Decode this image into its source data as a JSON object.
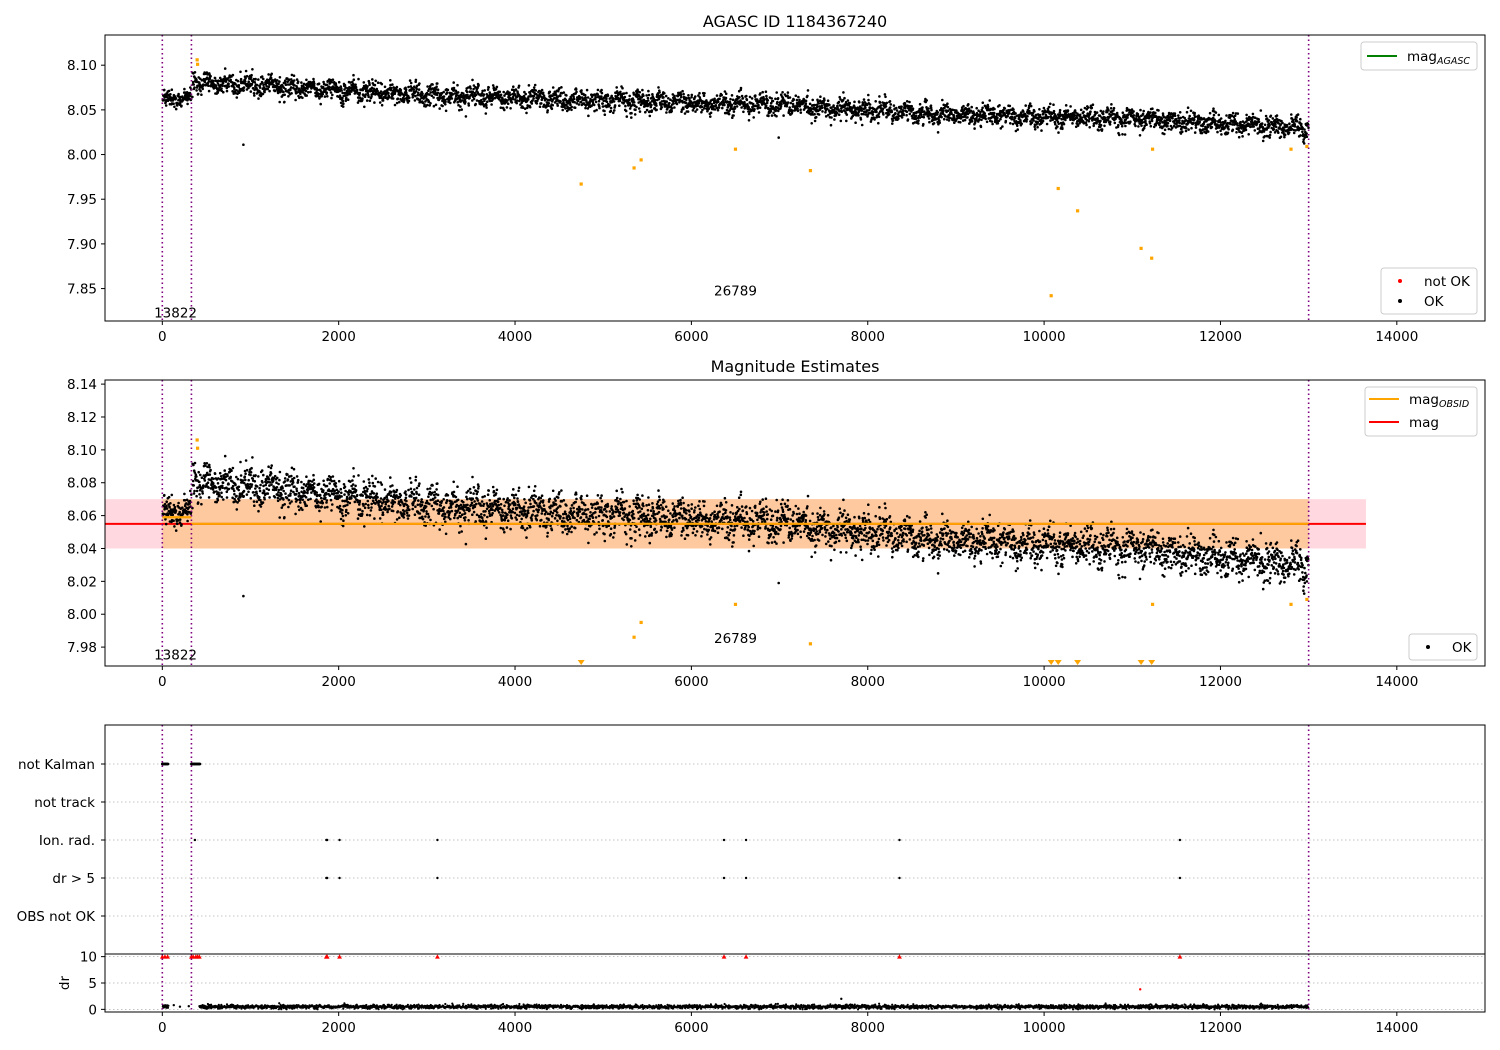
{
  "figure": {
    "title": "AGASC ID 1184367240",
    "background": "#ffffff"
  },
  "colors": {
    "ok": "#000000",
    "not_ok": "#ff0000",
    "mag_obsid": "#ffa500",
    "mag": "#ff0000",
    "mag_agasc": "#008000",
    "obsid_line": "#800080",
    "band_orange": "#ffdab9",
    "band_pink": "#ffd9df",
    "grid": "#b0b0b0"
  },
  "chart_data": [
    {
      "id": "agasc_panel",
      "type": "scatter",
      "title": "AGASC ID 1184367240",
      "xlim": [
        -650,
        15000
      ],
      "ylim": [
        7.8137,
        8.1338
      ],
      "xticks": [
        0,
        2000,
        4000,
        6000,
        8000,
        10000,
        12000,
        14000
      ],
      "yticks": [
        7.85,
        7.9,
        7.95,
        8.0,
        8.05,
        8.1
      ],
      "obsid_lines": [
        0,
        330,
        13000
      ],
      "obsid_labels": [
        {
          "text": "13822",
          "x": 150,
          "y": 7.823
        },
        {
          "text": "26789",
          "x": 6500,
          "y": 7.848
        }
      ],
      "ok_series": {
        "name": "OK",
        "trend": [
          [
            0,
            8.062
          ],
          [
            330,
            8.062
          ],
          [
            331,
            8.08
          ],
          [
            600,
            8.08
          ],
          [
            2000,
            8.072
          ],
          [
            3000,
            8.067
          ],
          [
            4000,
            8.063
          ],
          [
            5000,
            8.06
          ],
          [
            6000,
            8.058
          ],
          [
            7000,
            8.056
          ],
          [
            8000,
            8.05
          ],
          [
            9000,
            8.045
          ],
          [
            10000,
            8.042
          ],
          [
            11000,
            8.04
          ],
          [
            12000,
            8.035
          ],
          [
            13000,
            8.03
          ]
        ],
        "outliers": [
          [
            920,
            8.011
          ],
          [
            6990,
            8.019
          ]
        ]
      },
      "orange_points": [
        [
          395,
          8.106
        ],
        [
          400,
          8.101
        ],
        [
          4750,
          7.967
        ],
        [
          5350,
          7.985
        ],
        [
          5430,
          7.994
        ],
        [
          6500,
          8.006
        ],
        [
          7350,
          7.982
        ],
        [
          10080,
          7.842
        ],
        [
          10160,
          7.962
        ],
        [
          10380,
          7.937
        ],
        [
          11100,
          7.895
        ],
        [
          11220,
          7.884
        ],
        [
          11230,
          8.006
        ],
        [
          12800,
          8.006
        ],
        [
          12980,
          8.009
        ]
      ],
      "legend_lines": [
        {
          "label": "mag",
          "sub": "AGASC",
          "color": "#008000"
        }
      ],
      "legend_points": [
        {
          "label": "not OK",
          "color": "#ff0000"
        },
        {
          "label": "OK",
          "color": "#000000"
        }
      ]
    },
    {
      "id": "magnitude_panel",
      "type": "scatter",
      "title": "Magnitude Estimates",
      "xlim": [
        -650,
        15000
      ],
      "ylim": [
        7.9685,
        8.1425
      ],
      "xticks": [
        0,
        2000,
        4000,
        6000,
        8000,
        10000,
        12000,
        14000
      ],
      "yticks": [
        7.98,
        8.0,
        8.02,
        8.04,
        8.06,
        8.08,
        8.1,
        8.12,
        8.14
      ],
      "obsid_lines": [
        0,
        330,
        13000
      ],
      "obsid_labels": [
        {
          "text": "13822",
          "x": 150,
          "y": 7.9755
        },
        {
          "text": "26789",
          "x": 6500,
          "y": 7.9855
        }
      ],
      "mag": 8.055,
      "mag_band": [
        8.04,
        8.07
      ],
      "mag_extent": [
        -650,
        13650
      ],
      "mag_obsid_segments": [
        [
          0,
          330,
          8.059
        ],
        [
          330,
          13000,
          8.055
        ]
      ],
      "ok_series": {
        "name": "OK",
        "trend": [
          [
            0,
            8.062
          ],
          [
            330,
            8.062
          ],
          [
            331,
            8.08
          ],
          [
            600,
            8.08
          ],
          [
            2000,
            8.072
          ],
          [
            3000,
            8.067
          ],
          [
            4000,
            8.063
          ],
          [
            5000,
            8.06
          ],
          [
            6000,
            8.058
          ],
          [
            7000,
            8.056
          ],
          [
            8000,
            8.05
          ],
          [
            9000,
            8.045
          ],
          [
            10000,
            8.042
          ],
          [
            11000,
            8.04
          ],
          [
            12000,
            8.035
          ],
          [
            13000,
            8.03
          ]
        ],
        "outliers": [
          [
            920,
            8.011
          ],
          [
            6990,
            8.019
          ]
        ]
      },
      "orange_points": [
        [
          395,
          8.106
        ],
        [
          400,
          8.101
        ],
        [
          5350,
          7.986
        ],
        [
          5430,
          7.995
        ],
        [
          6500,
          8.006
        ],
        [
          7350,
          7.982
        ],
        [
          11230,
          8.006
        ],
        [
          12800,
          8.006
        ],
        [
          12980,
          8.009
        ]
      ],
      "orange_clipped_x": [
        4750,
        10080,
        10160,
        10380,
        11100,
        11220
      ],
      "legend_lines": [
        {
          "label": "mag",
          "sub": "OBSID",
          "color": "#ffa500"
        },
        {
          "label": "mag",
          "sub": "",
          "color": "#ff0000"
        }
      ],
      "legend_points": [
        {
          "label": "OK",
          "color": "#000000"
        }
      ]
    },
    {
      "id": "flags_panel",
      "type": "scatter",
      "xlim": [
        -650,
        15000
      ],
      "categories": [
        "not Kalman",
        "not track",
        "Ion. rad.",
        "dr > 5",
        "OBS not OK"
      ],
      "obsid_lines": [
        0,
        330,
        13000
      ],
      "flags": {
        "not Kalman": [
          [
            0,
            70
          ],
          [
            330,
            430
          ]
        ],
        "not track": [],
        "Ion. rad.": [
          370,
          1860,
          1870,
          2010,
          3120,
          6370,
          6620,
          8360,
          11540
        ],
        "dr > 5": [
          1860,
          1870,
          2010,
          3120,
          6370,
          6620,
          8360,
          11540
        ],
        "OBS not OK": []
      }
    },
    {
      "id": "dr_panel",
      "type": "scatter",
      "ylabel": "dr",
      "xlim": [
        -650,
        15000
      ],
      "ylim": [
        -0.5,
        10.5
      ],
      "xticks": [
        0,
        2000,
        4000,
        6000,
        8000,
        10000,
        12000,
        14000
      ],
      "yticks": [
        0,
        5,
        10
      ],
      "obsid_lines": [
        0,
        330,
        13000
      ],
      "dr_typical": 0.5,
      "dr_gap": [
        70,
        420
      ],
      "dr_outliers": [
        [
          130,
          0.8
        ],
        [
          200,
          0.5
        ],
        [
          300,
          0.6
        ],
        [
          7700,
          2.0
        ],
        [
          11090,
          3.8
        ]
      ],
      "dr_capped_x": [
        0,
        30,
        60,
        330,
        350,
        380,
        400,
        420,
        1860,
        1870,
        2010,
        3120,
        6370,
        6620,
        8360,
        11540
      ]
    }
  ]
}
